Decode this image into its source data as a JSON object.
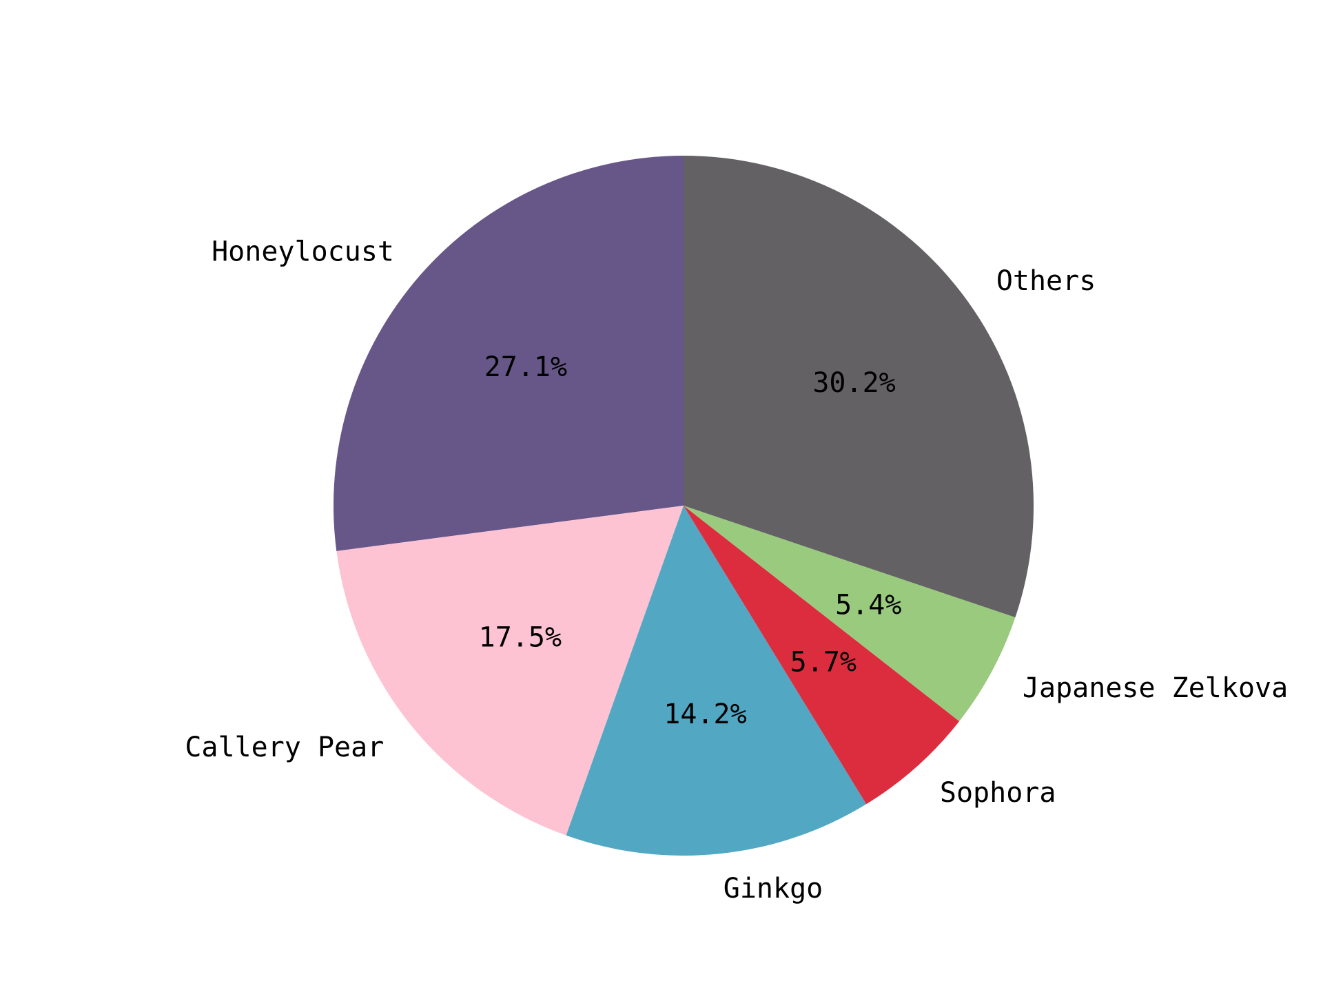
{
  "chart_data": {
    "type": "pie",
    "title": "",
    "start_angle_deg": 90,
    "direction": "counterclockwise",
    "slices": [
      {
        "label": "Honeylocust",
        "value": 27.1,
        "pct_label": "27.1%",
        "color": "#675788"
      },
      {
        "label": "Callery Pear",
        "value": 17.5,
        "pct_label": "17.5%",
        "color": "#fdc3d2"
      },
      {
        "label": "Ginkgo",
        "value": 14.2,
        "pct_label": "14.2%",
        "color": "#52a7c3"
      },
      {
        "label": "Sophora",
        "value": 5.7,
        "pct_label": "5.7%",
        "color": "#dc2d3f"
      },
      {
        "label": "Japanese Zelkova",
        "value": 5.4,
        "pct_label": "5.4%",
        "color": "#9aca7e"
      },
      {
        "label": "Others",
        "value": 30.2,
        "pct_label": "30.2%",
        "color": "#636164"
      }
    ]
  }
}
